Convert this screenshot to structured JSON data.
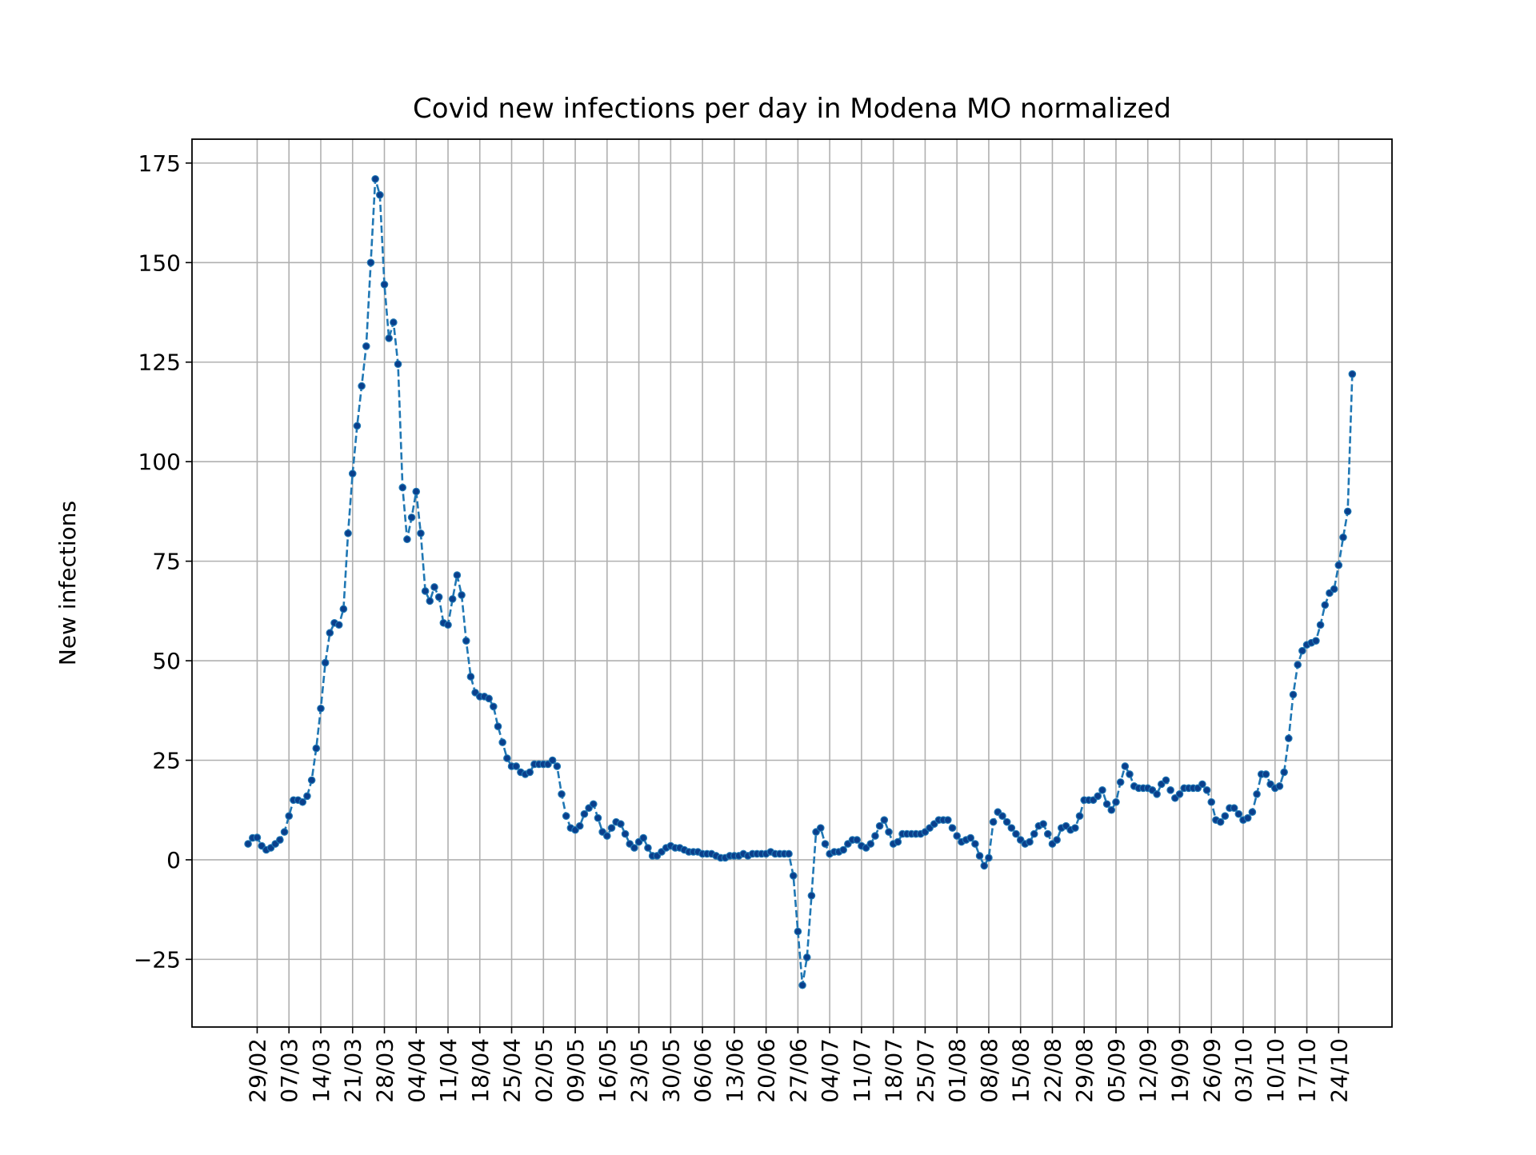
{
  "chart_data": {
    "type": "line",
    "title": "Covid new infections per day in Modena MO normalized",
    "xlabel": "",
    "ylabel": "New infections",
    "start_date": "2020-02-27",
    "x_tick_labels": [
      "29/02",
      "07/03",
      "14/03",
      "21/03",
      "28/03",
      "04/04",
      "11/04",
      "18/04",
      "25/04",
      "02/05",
      "09/05",
      "16/05",
      "23/05",
      "30/05",
      "06/06",
      "13/06",
      "20/06",
      "27/06",
      "04/07",
      "11/07",
      "18/07",
      "25/07",
      "01/08",
      "08/08",
      "15/08",
      "22/08",
      "29/08",
      "05/09",
      "12/09",
      "19/09",
      "26/09",
      "03/10",
      "10/10",
      "17/10",
      "24/10"
    ],
    "y_ticks": [
      -25,
      0,
      25,
      50,
      75,
      100,
      125,
      150,
      175
    ],
    "y_tick_labels": [
      "−25",
      "0",
      "25",
      "50",
      "75",
      "100",
      "125",
      "150",
      "175"
    ],
    "ylim": [
      -42,
      181
    ],
    "grid": true,
    "line_color": "#1f77b4",
    "marker_color": "#0a3f8c",
    "line_style": "dashed",
    "values": [
      4,
      5.5,
      5.6,
      3.5,
      2.5,
      3,
      4,
      5,
      7,
      11,
      15,
      15,
      14.5,
      16,
      20,
      28,
      38,
      49.5,
      57,
      59.5,
      59,
      63,
      82,
      97,
      109,
      119,
      129,
      150,
      171,
      167,
      144.5,
      131,
      135,
      124.5,
      93.5,
      80.5,
      86,
      92.5,
      82,
      67.5,
      65,
      68.5,
      66,
      59.5,
      59,
      65.5,
      71.5,
      66.5,
      55,
      46,
      42,
      41,
      41,
      40.5,
      38.5,
      33.5,
      29.5,
      25.5,
      23.5,
      23.5,
      22,
      21.5,
      22,
      24,
      24,
      24,
      24,
      25,
      23.5,
      16.5,
      11,
      8,
      7.5,
      8.5,
      11.5,
      13,
      14,
      10.5,
      7,
      6,
      8,
      9.5,
      9,
      6.5,
      4,
      3,
      4.5,
      5.5,
      3,
      1,
      1,
      2,
      3,
      3.5,
      3,
      3,
      2.5,
      2,
      2,
      2,
      1.5,
      1.5,
      1.5,
      1,
      0.5,
      0.5,
      1,
      1,
      1,
      1.5,
      1,
      1.5,
      1.5,
      1.5,
      1.5,
      2,
      1.5,
      1.5,
      1.5,
      1.5,
      -4,
      -18,
      -31.5,
      -24.5,
      -9,
      7,
      8,
      4,
      1.5,
      2,
      2,
      2.5,
      4,
      5,
      5,
      3.5,
      3,
      4,
      6,
      8.5,
      10,
      7,
      4,
      4.5,
      6.5,
      6.5,
      6.5,
      6.5,
      6.5,
      7,
      8,
      9,
      10,
      10,
      10,
      8,
      6,
      4.5,
      5,
      5.5,
      4,
      1,
      -1.5,
      0.5,
      9.5,
      12,
      11,
      9.5,
      8,
      6.5,
      5,
      4,
      4.5,
      6.5,
      8.5,
      9,
      6.5,
      4,
      5,
      8,
      8.5,
      7.5,
      8,
      11,
      15,
      15,
      15,
      16,
      17.5,
      14,
      12.5,
      14.5,
      19.5,
      23.5,
      21.5,
      18.5,
      18,
      18,
      18,
      17.5,
      16.5,
      19,
      20,
      17.5,
      15.5,
      16.5,
      18,
      18,
      18,
      18,
      19,
      17.5,
      14.5,
      10,
      9.5,
      11,
      13,
      13,
      11.5,
      10,
      10.5,
      12,
      16.5,
      21.5,
      21.5,
      19,
      18,
      18.5,
      22,
      30.5,
      41.5,
      49,
      52.5,
      54,
      54.5,
      55,
      59,
      64,
      67,
      68,
      74,
      81,
      87.5,
      122
    ]
  }
}
